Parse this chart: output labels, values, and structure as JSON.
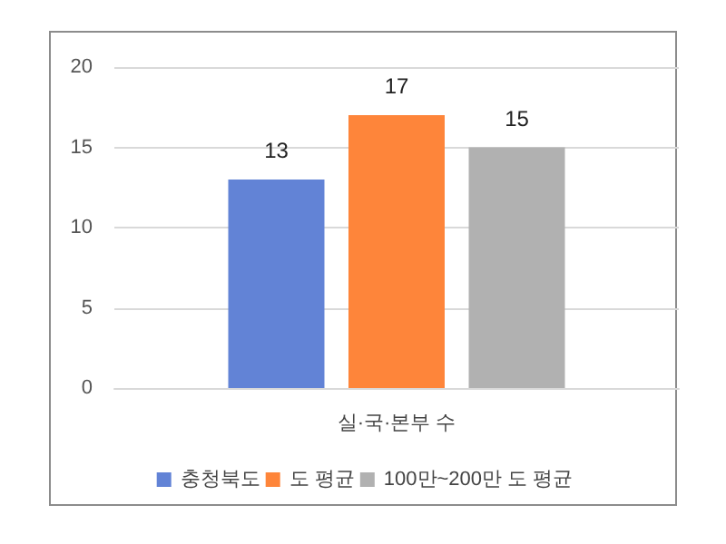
{
  "chart_data": {
    "type": "bar",
    "categories": [
      "실·국·본부 수"
    ],
    "series": [
      {
        "name": "충청북도",
        "color": "#6283d6",
        "values": [
          13
        ]
      },
      {
        "name": "도 평균",
        "color": "#fe853a",
        "values": [
          17
        ]
      },
      {
        "name": "100만~200만 도 평균",
        "color": "#b1b1b1",
        "values": [
          15
        ]
      }
    ],
    "ylim": [
      0,
      20
    ],
    "yticks": [
      0,
      5,
      10,
      15,
      20
    ],
    "grid": "y",
    "legend": "bottom",
    "data_labels": true
  }
}
